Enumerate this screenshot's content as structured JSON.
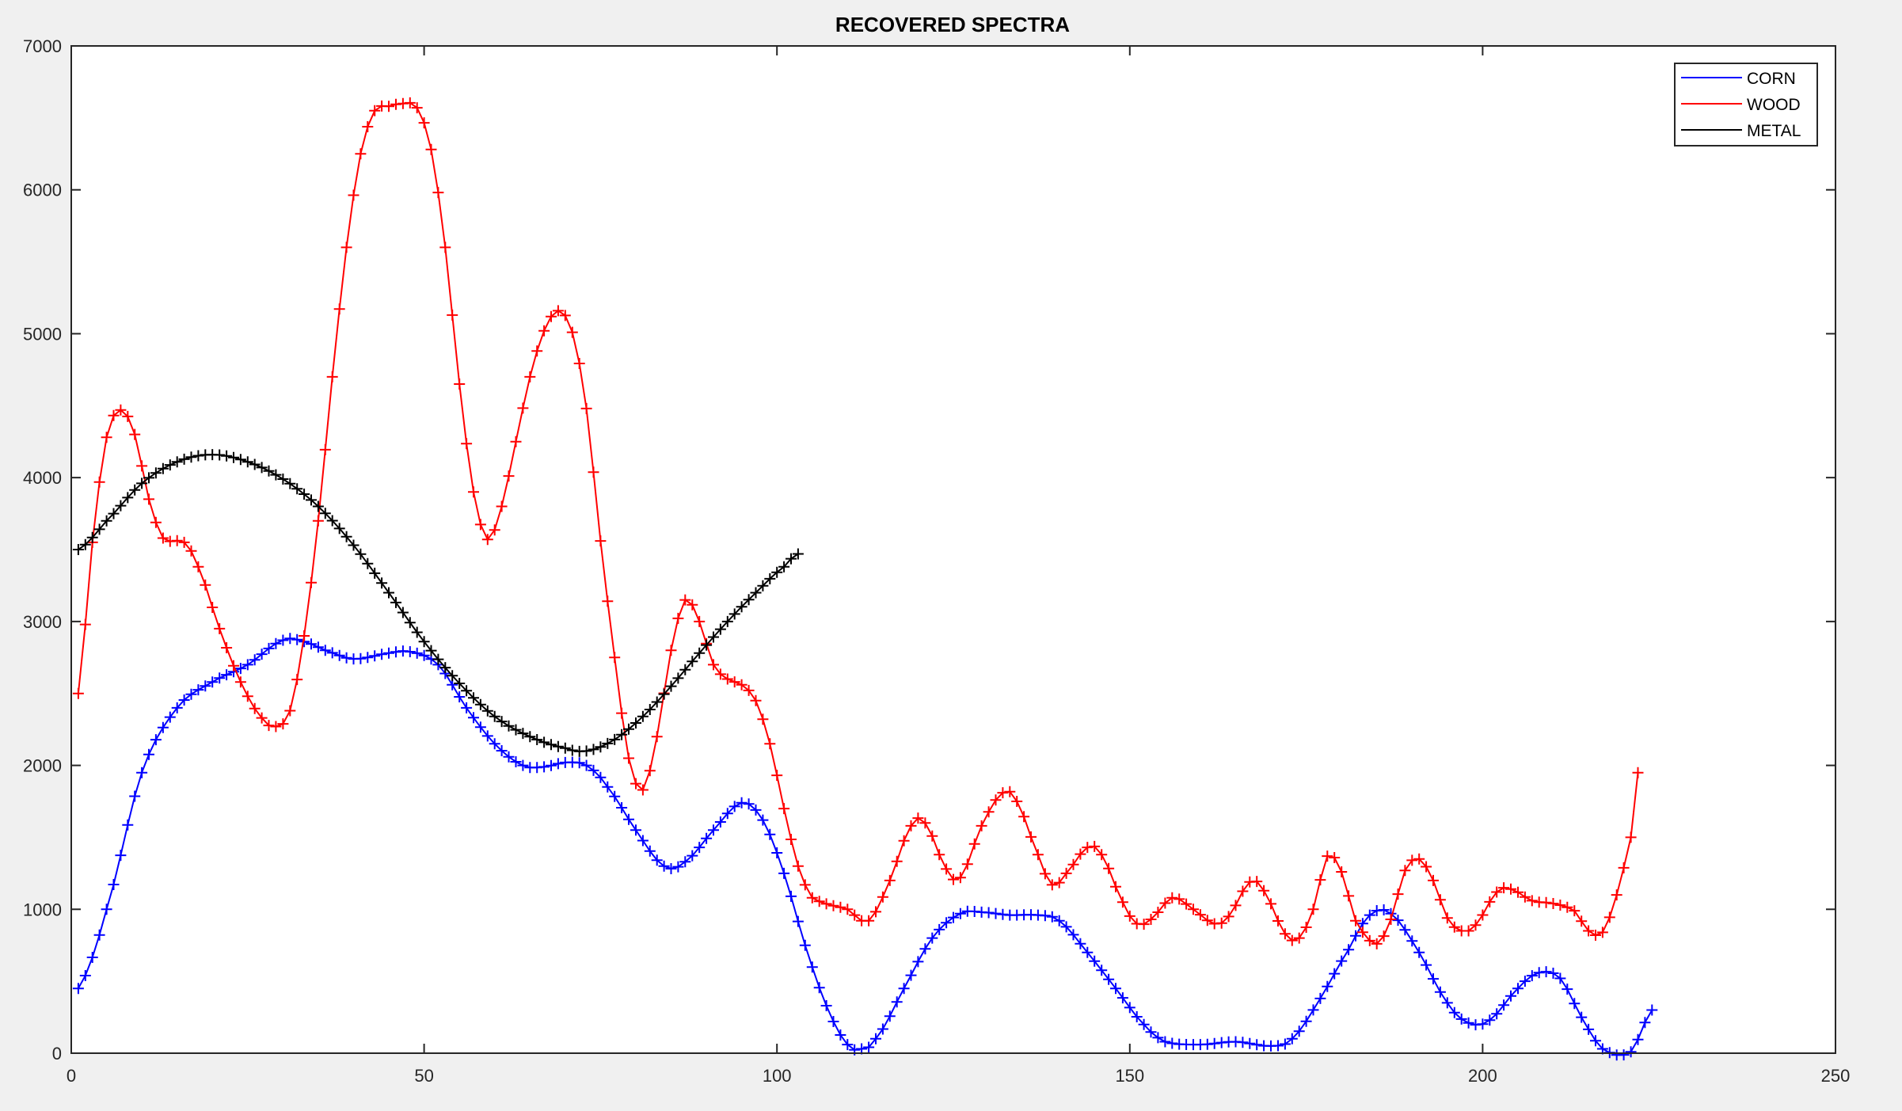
{
  "chart_data": {
    "type": "line",
    "title": "RECOVERED SPECTRA",
    "xlabel": "",
    "ylabel": "",
    "xlim": [
      0,
      250
    ],
    "ylim": [
      0,
      7000
    ],
    "x_ticks": [
      0,
      50,
      100,
      150,
      200,
      250
    ],
    "y_ticks": [
      0,
      1000,
      2000,
      3000,
      4000,
      5000,
      6000,
      7000
    ],
    "marker": "+",
    "legend_position": "top-right",
    "series": [
      {
        "name": "CORN",
        "color": "#0000ff",
        "keypoints": [
          [
            1,
            450
          ],
          [
            5,
            1000
          ],
          [
            10,
            1950
          ],
          [
            15,
            2400
          ],
          [
            20,
            2580
          ],
          [
            25,
            2700
          ],
          [
            30,
            2870
          ],
          [
            33,
            2860
          ],
          [
            36,
            2800
          ],
          [
            40,
            2740
          ],
          [
            45,
            2780
          ],
          [
            48,
            2790
          ],
          [
            52,
            2700
          ],
          [
            56,
            2400
          ],
          [
            60,
            2150
          ],
          [
            64,
            2000
          ],
          [
            67,
            1990
          ],
          [
            70,
            2020
          ],
          [
            73,
            2000
          ],
          [
            76,
            1850
          ],
          [
            80,
            1550
          ],
          [
            84,
            1300
          ],
          [
            87,
            1330
          ],
          [
            91,
            1550
          ],
          [
            95,
            1740
          ],
          [
            98,
            1620
          ],
          [
            101,
            1250
          ],
          [
            104,
            750
          ],
          [
            107,
            330
          ],
          [
            110,
            60
          ],
          [
            112,
            30
          ],
          [
            114,
            100
          ],
          [
            118,
            450
          ],
          [
            122,
            800
          ],
          [
            126,
            970
          ],
          [
            129,
            980
          ],
          [
            133,
            960
          ],
          [
            137,
            960
          ],
          [
            140,
            920
          ],
          [
            144,
            700
          ],
          [
            148,
            450
          ],
          [
            152,
            200
          ],
          [
            155,
            80
          ],
          [
            160,
            60
          ],
          [
            165,
            80
          ],
          [
            170,
            50
          ],
          [
            173,
            100
          ],
          [
            177,
            380
          ],
          [
            181,
            720
          ],
          [
            184,
            960
          ],
          [
            187,
            970
          ],
          [
            191,
            700
          ],
          [
            195,
            350
          ],
          [
            198,
            210
          ],
          [
            201,
            230
          ],
          [
            205,
            450
          ],
          [
            208,
            560
          ],
          [
            211,
            520
          ],
          [
            214,
            250
          ],
          [
            217,
            30
          ],
          [
            221,
            10
          ],
          [
            224,
            300
          ]
        ]
      },
      {
        "name": "WOOD",
        "color": "#ff0000",
        "keypoints": [
          [
            1,
            2500
          ],
          [
            3,
            3550
          ],
          [
            5,
            4280
          ],
          [
            7,
            4470
          ],
          [
            9,
            4300
          ],
          [
            11,
            3850
          ],
          [
            13,
            3580
          ],
          [
            16,
            3550
          ],
          [
            18,
            3380
          ],
          [
            21,
            2950
          ],
          [
            24,
            2580
          ],
          [
            27,
            2330
          ],
          [
            29,
            2270
          ],
          [
            31,
            2380
          ],
          [
            33,
            2900
          ],
          [
            35,
            3700
          ],
          [
            37,
            4700
          ],
          [
            39,
            5600
          ],
          [
            41,
            6250
          ],
          [
            43,
            6550
          ],
          [
            45,
            6580
          ],
          [
            47,
            6600
          ],
          [
            49,
            6570
          ],
          [
            51,
            6280
          ],
          [
            53,
            5600
          ],
          [
            55,
            4650
          ],
          [
            57,
            3900
          ],
          [
            59,
            3570
          ],
          [
            61,
            3800
          ],
          [
            63,
            4250
          ],
          [
            65,
            4700
          ],
          [
            67,
            5020
          ],
          [
            69,
            5160
          ],
          [
            71,
            5010
          ],
          [
            73,
            4480
          ],
          [
            75,
            3560
          ],
          [
            77,
            2750
          ],
          [
            79,
            2050
          ],
          [
            81,
            1830
          ],
          [
            83,
            2200
          ],
          [
            85,
            2800
          ],
          [
            87,
            3150
          ],
          [
            89,
            3000
          ],
          [
            91,
            2700
          ],
          [
            93,
            2600
          ],
          [
            95,
            2560
          ],
          [
            97,
            2450
          ],
          [
            99,
            2150
          ],
          [
            101,
            1700
          ],
          [
            103,
            1300
          ],
          [
            105,
            1080
          ],
          [
            110,
            1000
          ],
          [
            113,
            920
          ],
          [
            116,
            1200
          ],
          [
            119,
            1580
          ],
          [
            121,
            1600
          ],
          [
            124,
            1280
          ],
          [
            126,
            1220
          ],
          [
            129,
            1580
          ],
          [
            132,
            1810
          ],
          [
            134,
            1750
          ],
          [
            137,
            1380
          ],
          [
            139,
            1170
          ],
          [
            141,
            1250
          ],
          [
            144,
            1430
          ],
          [
            146,
            1380
          ],
          [
            149,
            1050
          ],
          [
            151,
            900
          ],
          [
            153,
            930
          ],
          [
            156,
            1080
          ],
          [
            159,
            1000
          ],
          [
            162,
            900
          ],
          [
            164,
            950
          ],
          [
            167,
            1190
          ],
          [
            169,
            1130
          ],
          [
            172,
            830
          ],
          [
            174,
            800
          ],
          [
            176,
            1000
          ],
          [
            178,
            1370
          ],
          [
            180,
            1260
          ],
          [
            182,
            920
          ],
          [
            185,
            760
          ],
          [
            187,
            930
          ],
          [
            189,
            1270
          ],
          [
            191,
            1350
          ],
          [
            193,
            1200
          ],
          [
            195,
            940
          ],
          [
            197,
            850
          ],
          [
            199,
            890
          ],
          [
            202,
            1120
          ],
          [
            204,
            1140
          ],
          [
            207,
            1060
          ],
          [
            210,
            1040
          ],
          [
            213,
            990
          ],
          [
            215,
            850
          ],
          [
            217,
            840
          ],
          [
            219,
            1100
          ],
          [
            221,
            1500
          ],
          [
            222,
            1950
          ]
        ]
      },
      {
        "name": "METAL",
        "color": "#000000",
        "keypoints": [
          [
            1,
            3500
          ],
          [
            5,
            3700
          ],
          [
            10,
            3960
          ],
          [
            15,
            4110
          ],
          [
            20,
            4160
          ],
          [
            25,
            4110
          ],
          [
            30,
            3990
          ],
          [
            35,
            3800
          ],
          [
            40,
            3530
          ],
          [
            45,
            3200
          ],
          [
            50,
            2860
          ],
          [
            55,
            2570
          ],
          [
            60,
            2340
          ],
          [
            65,
            2200
          ],
          [
            70,
            2120
          ],
          [
            73,
            2100
          ],
          [
            77,
            2180
          ],
          [
            81,
            2340
          ],
          [
            85,
            2550
          ],
          [
            89,
            2780
          ],
          [
            93,
            3000
          ],
          [
            97,
            3200
          ],
          [
            101,
            3380
          ],
          [
            103,
            3470
          ]
        ]
      }
    ]
  }
}
